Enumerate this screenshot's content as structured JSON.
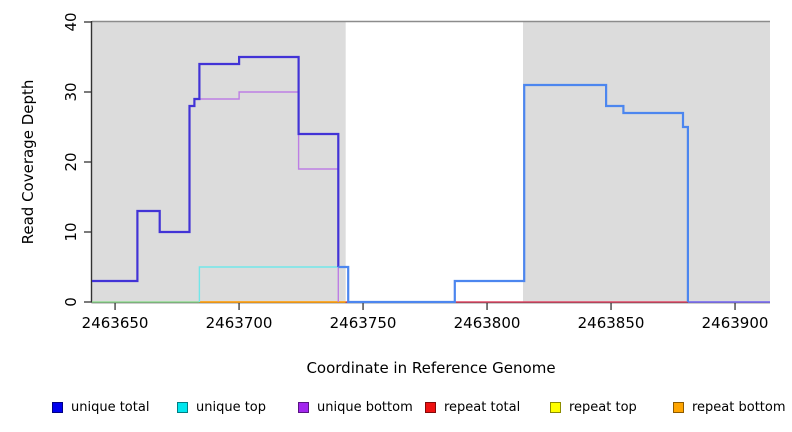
{
  "figure": {
    "x_axis_title": "Coordinate in Reference Genome",
    "y_axis_title": "Read Coverage Depth"
  },
  "chart_data": {
    "type": "line",
    "subtype": "step-coverage-plot",
    "title": "",
    "xlabel": "Coordinate in Reference Genome",
    "ylabel": "Read Coverage Depth",
    "xlim": [
      2463640.7,
      2463914.1
    ],
    "ylim": [
      0,
      40
    ],
    "x_ticks": [
      2463650,
      2463700,
      2463750,
      2463800,
      2463850,
      2463900
    ],
    "y_ticks": [
      0,
      10,
      20,
      30,
      40
    ],
    "grid": false,
    "legend_position": "bottom",
    "background_bands": {
      "color": "#DCDCDC",
      "regions": [
        [
          2463640.7,
          2463743
        ],
        [
          2463814.5,
          2463914.1
        ]
      ]
    },
    "top_border_color": "#8C8C8C",
    "axis_color": "#333333",
    "series": [
      {
        "name": "unique total",
        "color": "#0000EE",
        "steps": [
          [
            2463641,
            3
          ],
          [
            2463659,
            13
          ],
          [
            2463668,
            10
          ],
          [
            2463680,
            28
          ],
          [
            2463682,
            29
          ],
          [
            2463684,
            34
          ],
          [
            2463700,
            35
          ],
          [
            2463724,
            24
          ],
          [
            2463740,
            5
          ],
          [
            2463744,
            0
          ],
          [
            2463787,
            3
          ],
          [
            2463815,
            31
          ],
          [
            2463848,
            28
          ],
          [
            2463855,
            27
          ],
          [
            2463879,
            25
          ],
          [
            2463881,
            0
          ]
        ],
        "x_end": 2463914
      },
      {
        "name": "unique top",
        "color": "#00E6EE",
        "steps": [
          [
            2463641,
            0
          ],
          [
            2463684,
            5
          ],
          [
            2463744,
            0
          ],
          [
            2463787,
            3
          ],
          [
            2463815,
            31
          ],
          [
            2463848,
            28
          ],
          [
            2463855,
            27
          ],
          [
            2463879,
            25
          ],
          [
            2463881,
            0
          ]
        ],
        "x_end": 2463914
      },
      {
        "name": "unique bottom",
        "color": "#A226EE",
        "steps": [
          [
            2463641,
            3
          ],
          [
            2463659,
            13
          ],
          [
            2463668,
            10
          ],
          [
            2463680,
            28
          ],
          [
            2463682,
            29
          ],
          [
            2463700,
            30
          ],
          [
            2463724,
            19
          ],
          [
            2463740,
            0
          ]
        ],
        "x_end": 2463881
      },
      {
        "name": "repeat total",
        "color": "#EE1111",
        "steps": [
          [
            2463743,
            0
          ]
        ],
        "x_end": 2463881
      },
      {
        "name": "repeat top",
        "color": "#FFFF00",
        "steps": [
          [
            2463641,
            0
          ]
        ],
        "x_end": 2463684
      },
      {
        "name": "repeat bottom",
        "color": "#FFA500",
        "steps": [
          [
            2463684,
            0
          ]
        ],
        "x_end": 2463743
      }
    ],
    "render_series": [
      {
        "name": "repeat-top-unique-top-overlap-0",
        "color": "#93DC93",
        "width": 1.6,
        "points": [
          [
            2463640.7,
            0
          ],
          [
            2463684,
            0
          ]
        ]
      },
      {
        "name": "repeat-bottom-0",
        "color": "#FFA317",
        "width": 1.8,
        "points": [
          [
            2463684,
            0
          ],
          [
            2463743,
            0
          ]
        ]
      },
      {
        "name": "repeat-total-0",
        "color": "#E04A67",
        "width": 1.4,
        "points": [
          [
            2463743,
            0
          ],
          [
            2463881,
            0
          ]
        ]
      },
      {
        "name": "unique-total-bottom-overlap-0",
        "color": "#7F72EE",
        "width": 1.8,
        "points": [
          [
            2463881,
            0
          ],
          [
            2463914.1,
            0
          ]
        ]
      },
      {
        "name": "unique-top",
        "color": "#72E6E9",
        "width": 1.4,
        "points": [
          [
            2463684,
            0
          ],
          [
            2463684,
            5
          ],
          [
            2463740,
            5
          ]
        ]
      },
      {
        "name": "unique-bottom",
        "color": "#BD7EE4",
        "width": 1.4,
        "points": [
          [
            2463682,
            29
          ],
          [
            2463700,
            29
          ],
          [
            2463700,
            30
          ],
          [
            2463724,
            30
          ],
          [
            2463724,
            19
          ],
          [
            2463740,
            19
          ],
          [
            2463740,
            0
          ]
        ]
      },
      {
        "name": "unique-total-left",
        "color": "#4233D6",
        "width": 2.2,
        "points": [
          [
            2463640.7,
            3
          ],
          [
            2463659,
            3
          ],
          [
            2463659,
            13
          ],
          [
            2463668,
            13
          ],
          [
            2463668,
            10
          ],
          [
            2463680,
            10
          ],
          [
            2463680,
            28
          ],
          [
            2463682,
            28
          ],
          [
            2463682,
            29
          ],
          [
            2463684,
            29
          ],
          [
            2463684,
            34
          ],
          [
            2463700,
            34
          ],
          [
            2463700,
            35
          ],
          [
            2463724,
            35
          ],
          [
            2463724,
            24
          ],
          [
            2463740,
            24
          ],
          [
            2463740,
            5
          ]
        ]
      },
      {
        "name": "unique-total-right",
        "color": "#4C86EF",
        "width": 2.2,
        "points": [
          [
            2463740,
            5
          ],
          [
            2463744,
            5
          ],
          [
            2463744,
            0
          ],
          [
            2463787,
            0
          ],
          [
            2463787,
            3
          ],
          [
            2463815,
            3
          ],
          [
            2463815,
            31
          ],
          [
            2463848,
            31
          ],
          [
            2463848,
            28
          ],
          [
            2463855,
            28
          ],
          [
            2463855,
            27
          ],
          [
            2463879,
            27
          ],
          [
            2463879,
            25
          ],
          [
            2463881,
            25
          ],
          [
            2463881,
            0
          ]
        ]
      }
    ],
    "legend": [
      {
        "label": "unique total",
        "color": "#0000EE"
      },
      {
        "label": "unique top",
        "color": "#00E6EE"
      },
      {
        "label": "unique bottom",
        "color": "#A226EE"
      },
      {
        "label": "repeat total",
        "color": "#EE1111"
      },
      {
        "label": "repeat top",
        "color": "#FFFF00"
      },
      {
        "label": "repeat bottom",
        "color": "#FFA500"
      }
    ]
  }
}
